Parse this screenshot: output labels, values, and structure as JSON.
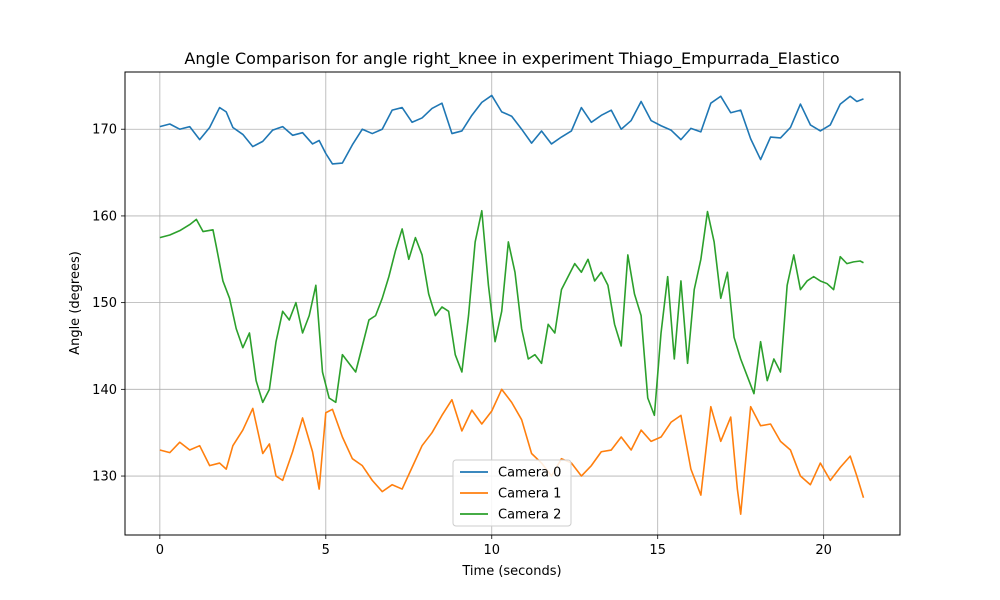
{
  "chart_data": {
    "type": "line",
    "title": "Angle Comparison for angle right_knee in experiment Thiago_Empurrada_Elastico",
    "xlabel": "Time (seconds)",
    "ylabel": "Angle (degrees)",
    "xlim": [
      -1.05,
      22.3
    ],
    "ylim": [
      123.2,
      176.6
    ],
    "xticks": [
      0,
      5,
      10,
      15,
      20
    ],
    "yticks": [
      130,
      140,
      150,
      160,
      170
    ],
    "grid": true,
    "legend_position": "lower center",
    "series": [
      {
        "name": "Camera 0",
        "color": "#1f77b4",
        "x": [
          0,
          0.3,
          0.6,
          0.9,
          1.2,
          1.5,
          1.8,
          2.0,
          2.2,
          2.5,
          2.8,
          3.1,
          3.4,
          3.7,
          4.0,
          4.3,
          4.6,
          4.8,
          5.0,
          5.2,
          5.5,
          5.8,
          6.1,
          6.4,
          6.7,
          7.0,
          7.3,
          7.6,
          7.9,
          8.2,
          8.5,
          8.8,
          9.1,
          9.4,
          9.7,
          10.0,
          10.3,
          10.6,
          10.9,
          11.2,
          11.5,
          11.8,
          12.1,
          12.4,
          12.7,
          13.0,
          13.3,
          13.6,
          13.9,
          14.2,
          14.5,
          14.8,
          15.1,
          15.4,
          15.7,
          16.0,
          16.3,
          16.6,
          16.9,
          17.2,
          17.5,
          17.8,
          18.1,
          18.4,
          18.7,
          19.0,
          19.3,
          19.6,
          19.9,
          20.2,
          20.5,
          20.8,
          21.0,
          21.2
        ],
        "values": [
          170.3,
          170.6,
          170.0,
          170.3,
          168.8,
          170.2,
          172.5,
          172.0,
          170.2,
          169.4,
          168.0,
          168.6,
          169.9,
          170.3,
          169.3,
          169.6,
          168.3,
          168.7,
          167.2,
          166.0,
          166.1,
          168.2,
          170.0,
          169.5,
          170.0,
          172.2,
          172.5,
          170.8,
          171.3,
          172.4,
          173.0,
          169.5,
          169.8,
          171.6,
          173.1,
          173.9,
          172.0,
          171.5,
          170.0,
          168.4,
          169.8,
          168.3,
          169.1,
          169.8,
          172.5,
          170.8,
          171.6,
          172.2,
          170.0,
          171.0,
          173.2,
          171.0,
          170.4,
          169.9,
          168.8,
          170.1,
          169.7,
          173.0,
          173.8,
          171.9,
          172.2,
          168.9,
          166.5,
          169.1,
          169.0,
          170.2,
          172.9,
          170.5,
          169.8,
          170.5,
          172.9,
          173.8,
          173.2,
          173.5
        ]
      },
      {
        "name": "Camera 1",
        "color": "#ff7f0e",
        "x": [
          0,
          0.3,
          0.6,
          0.9,
          1.2,
          1.5,
          1.8,
          2.0,
          2.2,
          2.5,
          2.8,
          3.1,
          3.3,
          3.5,
          3.7,
          4.0,
          4.3,
          4.6,
          4.8,
          5.0,
          5.2,
          5.5,
          5.8,
          6.1,
          6.4,
          6.7,
          7.0,
          7.3,
          7.6,
          7.9,
          8.2,
          8.5,
          8.8,
          9.1,
          9.4,
          9.7,
          10.0,
          10.3,
          10.6,
          10.9,
          11.2,
          11.5,
          11.8,
          12.1,
          12.4,
          12.7,
          13.0,
          13.3,
          13.6,
          13.9,
          14.2,
          14.5,
          14.8,
          15.1,
          15.4,
          15.7,
          16.0,
          16.3,
          16.6,
          16.9,
          17.2,
          17.4,
          17.5,
          17.8,
          18.1,
          18.4,
          18.7,
          19.0,
          19.3,
          19.6,
          19.9,
          20.2,
          20.5,
          20.8,
          21.0,
          21.2
        ],
        "values": [
          133.0,
          132.7,
          133.9,
          133.0,
          133.5,
          131.2,
          131.5,
          130.8,
          133.5,
          135.3,
          137.8,
          132.6,
          133.7,
          130.0,
          129.5,
          132.8,
          136.7,
          132.8,
          128.5,
          137.3,
          137.7,
          134.5,
          132.0,
          131.2,
          129.5,
          128.2,
          129.0,
          128.5,
          131.0,
          133.5,
          135.0,
          137.0,
          138.8,
          135.2,
          137.6,
          136.0,
          137.5,
          140.0,
          138.5,
          136.5,
          132.6,
          131.5,
          130.0,
          132.0,
          131.5,
          130.0,
          131.2,
          132.8,
          133.0,
          134.5,
          133.0,
          135.3,
          134.0,
          134.5,
          136.2,
          137.0,
          130.8,
          127.8,
          138.0,
          134.0,
          136.8,
          128.5,
          125.6,
          138.0,
          135.8,
          136.0,
          134.0,
          133.0,
          130.0,
          129.0,
          131.5,
          129.5,
          131.0,
          132.3,
          130.0,
          127.5
        ]
      },
      {
        "name": "Camera 2",
        "color": "#2ca02c",
        "x": [
          0,
          0.3,
          0.6,
          0.9,
          1.1,
          1.3,
          1.6,
          1.7,
          1.9,
          2.1,
          2.3,
          2.5,
          2.7,
          2.9,
          3.1,
          3.3,
          3.5,
          3.7,
          3.9,
          4.1,
          4.3,
          4.5,
          4.7,
          4.9,
          5.1,
          5.3,
          5.5,
          5.7,
          5.9,
          6.1,
          6.3,
          6.5,
          6.7,
          6.9,
          7.1,
          7.3,
          7.5,
          7.7,
          7.9,
          8.1,
          8.3,
          8.5,
          8.7,
          8.9,
          9.1,
          9.3,
          9.5,
          9.7,
          9.9,
          10.1,
          10.3,
          10.5,
          10.7,
          10.9,
          11.1,
          11.3,
          11.5,
          11.7,
          11.9,
          12.1,
          12.3,
          12.5,
          12.7,
          12.9,
          13.1,
          13.3,
          13.5,
          13.7,
          13.9,
          14.1,
          14.3,
          14.5,
          14.7,
          14.9,
          15.1,
          15.3,
          15.5,
          15.7,
          15.9,
          16.1,
          16.3,
          16.5,
          16.7,
          16.9,
          17.1,
          17.3,
          17.5,
          17.7,
          17.9,
          18.1,
          18.3,
          18.5,
          18.7,
          18.9,
          19.1,
          19.3,
          19.5,
          19.7,
          19.9,
          20.1,
          20.3,
          20.5,
          20.7,
          20.9,
          21.1,
          21.2
        ],
        "values": [
          157.5,
          157.8,
          158.3,
          159.0,
          159.6,
          158.2,
          158.4,
          156.5,
          152.5,
          150.5,
          147.0,
          144.8,
          146.5,
          141.0,
          138.5,
          140.0,
          145.5,
          149.0,
          148.0,
          150.0,
          146.5,
          148.5,
          152.0,
          142.0,
          139.0,
          138.5,
          144.0,
          143.0,
          142.0,
          145.0,
          148.0,
          148.5,
          150.5,
          153.0,
          156.0,
          158.5,
          155.0,
          157.5,
          155.5,
          151.0,
          148.5,
          149.5,
          149.0,
          144.0,
          142.0,
          148.5,
          157.0,
          160.6,
          152.0,
          145.5,
          149.0,
          157.0,
          153.5,
          147.0,
          143.5,
          144.0,
          143.0,
          147.5,
          146.5,
          151.5,
          153.0,
          154.5,
          153.5,
          155.0,
          152.5,
          153.5,
          152.0,
          147.5,
          145.0,
          155.5,
          151.0,
          148.5,
          139.0,
          137.0,
          146.5,
          153.0,
          143.5,
          152.5,
          143.0,
          151.5,
          155.0,
          160.5,
          157.0,
          150.5,
          153.5,
          146.0,
          143.5,
          141.5,
          139.5,
          145.5,
          141.0,
          143.5,
          142.0,
          152.0,
          155.5,
          151.5,
          152.5,
          153.0,
          152.5,
          152.2,
          151.5,
          155.3,
          154.5,
          154.7,
          154.8,
          154.6
        ]
      }
    ]
  }
}
